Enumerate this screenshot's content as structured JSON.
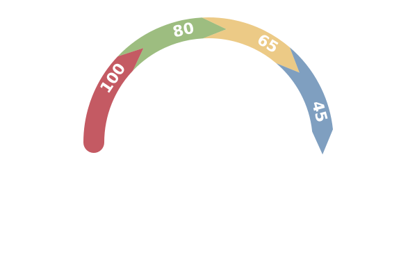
{
  "chart_data": {
    "type": "gauge",
    "title": "",
    "segments": [
      {
        "label": "100",
        "value": 100,
        "color": "#c45a63"
      },
      {
        "label": "80",
        "value": 80,
        "color": "#9dbd80"
      },
      {
        "label": "65",
        "value": 65,
        "color": "#ecca86"
      },
      {
        "label": "45",
        "value": 45,
        "color": "#7f9fc0"
      }
    ]
  }
}
